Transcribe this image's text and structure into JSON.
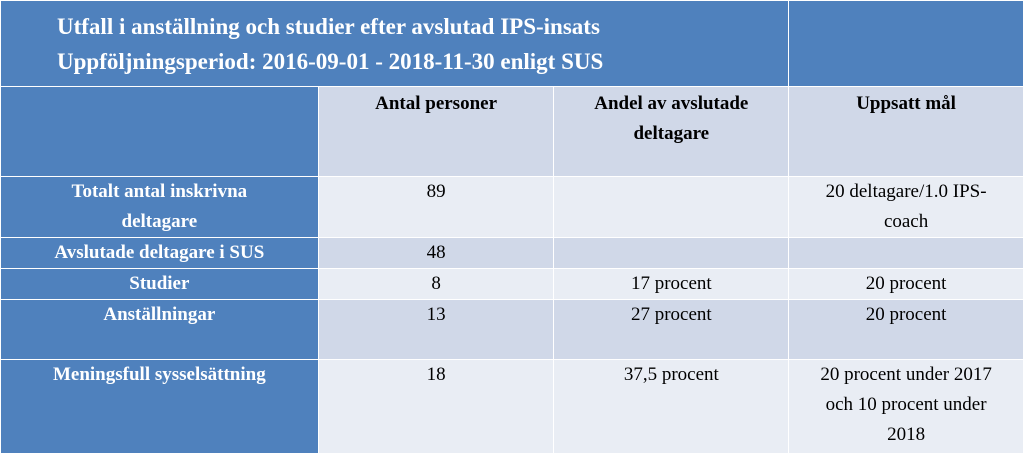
{
  "table": {
    "title_line1": "Utfall i anställning  och studier efter avslutad IPS-insats",
    "title_line2": "Uppföljningsperiod: 2016-09-01 - 2018-11-30 enligt SUS",
    "headers": {
      "col1": "Antal personer",
      "col2_line1": "Andel av avslutade",
      "col2_line2": "deltagare",
      "col3": "Uppsatt mål"
    },
    "rows": [
      {
        "label_line1": "Totalt antal inskrivna",
        "label_line2": "deltagare",
        "count": "89",
        "share": "",
        "goal_line1": "20 deltagare/1.0  IPS-",
        "goal_line2": "coach",
        "goal_line3": ""
      },
      {
        "label_line1": "Avslutade deltagare i SUS",
        "label_line2": "",
        "count": "48",
        "share": "",
        "goal_line1": "",
        "goal_line2": "",
        "goal_line3": ""
      },
      {
        "label_line1": "Studier",
        "label_line2": "",
        "count": "8",
        "share": "17 procent",
        "goal_line1": "20 procent",
        "goal_line2": "",
        "goal_line3": ""
      },
      {
        "label_line1": "Anställningar",
        "label_line2": "",
        "count": "13",
        "share": "27 procent",
        "goal_line1": "20 procent",
        "goal_line2": "",
        "goal_line3": ""
      },
      {
        "label_line1": "Meningsfull sysselsättning",
        "label_line2": "",
        "count": "18",
        "share": "37,5 procent",
        "goal_line1": "20 procent under 2017",
        "goal_line2": "och 10 procent under",
        "goal_line3": "2018"
      }
    ]
  }
}
